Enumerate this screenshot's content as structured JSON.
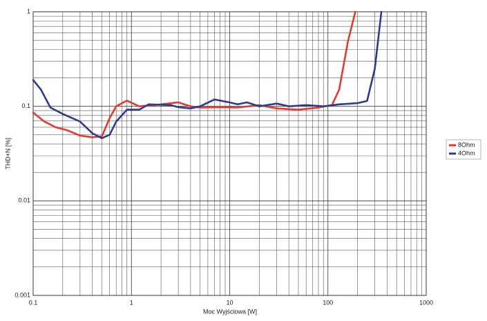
{
  "chart_data": {
    "type": "line",
    "xlabel": "Moc Wyjściowa [W]",
    "ylabel": "THD+N [%]",
    "xscale": "log",
    "yscale": "log",
    "grid": true,
    "minor_grid": true,
    "legend": "right",
    "xlim": [
      0.1,
      1000
    ],
    "ylim": [
      0.001,
      1
    ],
    "xticks": [
      0.1,
      1,
      10,
      100,
      1000
    ],
    "yticks": [
      0.001,
      0.01,
      0.1,
      1
    ],
    "series": [
      {
        "name": "8Ohm",
        "color": "#e23a2e",
        "x": [
          0.1,
          0.13,
          0.17,
          0.22,
          0.3,
          0.4,
          0.5,
          0.6,
          0.7,
          0.9,
          1.2,
          2,
          3,
          4,
          5,
          8,
          12,
          20,
          30,
          50,
          80,
          110,
          130,
          160,
          190
        ],
        "values": [
          0.086,
          0.069,
          0.06,
          0.056,
          0.049,
          0.047,
          0.048,
          0.075,
          0.1,
          0.115,
          0.1,
          0.105,
          0.11,
          0.1,
          0.097,
          0.098,
          0.097,
          0.103,
          0.095,
          0.092,
          0.097,
          0.103,
          0.15,
          0.49,
          1.0
        ]
      },
      {
        "name": "4Ohm",
        "color": "#2e3a8e",
        "x": [
          0.1,
          0.12,
          0.15,
          0.2,
          0.3,
          0.4,
          0.5,
          0.6,
          0.7,
          0.9,
          1.2,
          1.5,
          2.5,
          3,
          4,
          5,
          7,
          10,
          12,
          15,
          20,
          30,
          40,
          60,
          90,
          130,
          200,
          250,
          300,
          350
        ],
        "values": [
          0.19,
          0.15,
          0.097,
          0.083,
          0.069,
          0.052,
          0.046,
          0.05,
          0.069,
          0.092,
          0.092,
          0.105,
          0.103,
          0.098,
          0.095,
          0.1,
          0.118,
          0.11,
          0.105,
          0.11,
          0.1,
          0.107,
          0.1,
          0.103,
          0.1,
          0.105,
          0.108,
          0.114,
          0.25,
          1.0
        ]
      }
    ]
  }
}
